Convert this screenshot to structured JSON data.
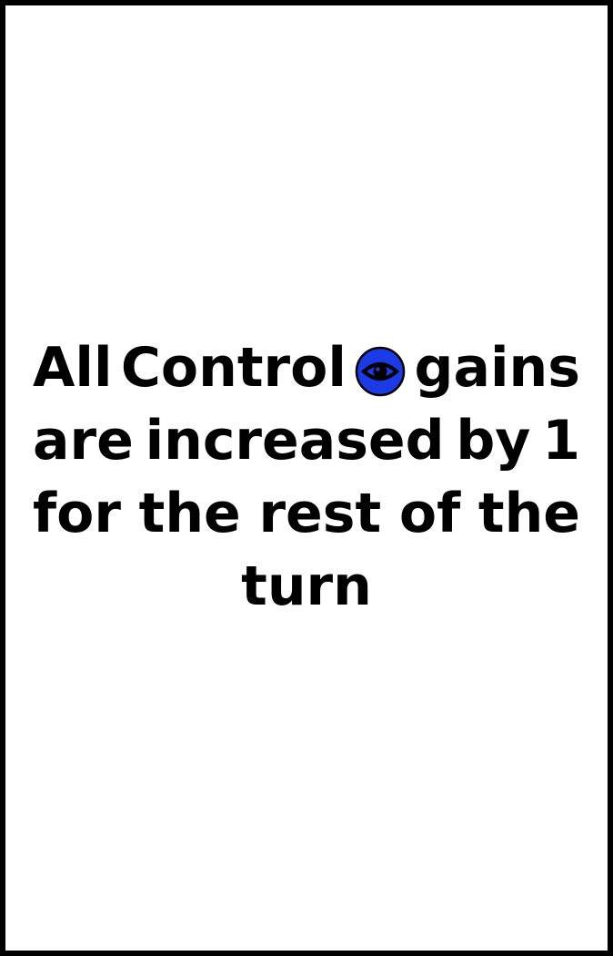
{
  "card": {
    "text": {
      "line1": {
        "word1": "All",
        "word2": "Control",
        "icon": "eye-icon",
        "word3": "gains"
      },
      "line2": {
        "word1": "are",
        "word2": "increased",
        "word3": "by",
        "word4": "1"
      },
      "line3": {
        "word1": "for",
        "word2": "the",
        "word3": "rest",
        "word4": "of",
        "word5": "the"
      },
      "line4": {
        "word1": "turn"
      }
    },
    "colors": {
      "border": "#000000",
      "background": "#ffffff",
      "text": "#000000",
      "icon_fill": "#1a3be6",
      "icon_outline": "#000000"
    }
  }
}
